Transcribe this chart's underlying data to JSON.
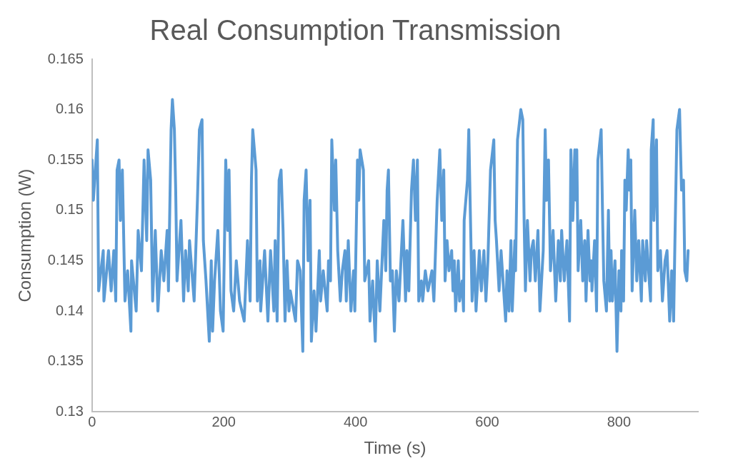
{
  "chart_data": {
    "type": "line",
    "title": "Real Consumption Transmission",
    "xlabel": "Time (s)",
    "ylabel": "Consumption (W)",
    "xlim": [
      0,
      920
    ],
    "xticks": [
      0,
      200,
      400,
      600,
      800
    ],
    "ylim": [
      0.13,
      0.165
    ],
    "yticks": [
      0.13,
      0.135,
      0.14,
      0.145,
      0.15,
      0.155,
      0.16,
      0.165
    ],
    "grid": false,
    "legend": false,
    "marker": "none",
    "line_style": "solid",
    "series": [
      {
        "color": "#5b9bd5",
        "x": [
          0,
          2,
          8,
          10,
          17,
          18,
          25,
          29,
          33,
          36,
          38,
          41,
          43,
          46,
          50,
          54,
          59,
          60,
          67,
          70,
          75,
          79,
          83,
          85,
          89,
          92,
          96,
          100,
          105,
          109,
          114,
          116,
          120,
          122,
          125,
          127,
          129,
          135,
          139,
          142,
          146,
          148,
          155,
          160,
          163,
          167,
          169,
          173,
          178,
          181,
          183,
          186,
          191,
          195,
          199,
          203,
          206,
          208,
          211,
          215,
          219,
          224,
          231,
          236,
          240,
          242,
          244,
          249,
          251,
          255,
          256,
          262,
          267,
          271,
          276,
          278,
          281,
          284,
          287,
          290,
          293,
          296,
          299,
          301,
          309,
          312,
          316,
          320,
          322,
          325,
          328,
          331,
          333,
          337,
          340,
          345,
          347,
          351,
          357,
          359,
          362,
          364,
          368,
          370,
          373,
          377,
          380,
          384,
          386,
          389,
          393,
          397,
          399,
          403,
          405,
          407,
          412,
          414,
          420,
          422,
          426,
          430,
          433,
          437,
          443,
          446,
          448,
          450,
          453,
          456,
          459,
          462,
          466,
          472,
          476,
          478,
          481,
          485,
          488,
          491,
          494,
          496,
          500,
          502,
          506,
          510,
          516,
          519,
          522,
          524,
          528,
          531,
          534,
          536,
          539,
          542,
          546,
          548,
          550,
          552,
          556,
          558,
          562,
          564,
          565,
          570,
          572,
          574,
          577,
          580,
          583,
          588,
          591,
          595,
          598,
          601,
          605,
          610,
          612,
          614,
          618,
          621,
          625,
          628,
          630,
          633,
          636,
          638,
          642,
          643,
          646,
          651,
          654,
          656,
          658,
          661,
          665,
          667,
          670,
          673,
          677,
          680,
          685,
          688,
          690,
          693,
          696,
          700,
          704,
          708,
          711,
          713,
          717,
          721,
          725,
          727,
          730,
          733,
          735,
          736,
          738,
          742,
          745,
          748,
          750,
          753,
          756,
          758,
          759,
          763,
          766,
          768,
          773,
          775,
          777,
          781,
          784,
          786,
          788,
          790,
          794,
          797,
          800,
          803,
          804,
          807,
          809,
          811,
          814,
          816,
          818,
          820,
          824,
          827,
          830,
          834,
          836,
          840,
          842,
          845,
          848,
          849,
          852,
          853,
          857,
          859,
          863,
          866,
          870,
          873,
          877,
          880,
          883,
          885,
          888,
          892,
          895,
          898,
          900,
          903,
          905
        ],
        "values": [
          0.155,
          0.151,
          0.157,
          0.142,
          0.146,
          0.141,
          0.146,
          0.142,
          0.146,
          0.141,
          0.154,
          0.155,
          0.149,
          0.154,
          0.141,
          0.144,
          0.138,
          0.145,
          0.14,
          0.148,
          0.144,
          0.155,
          0.147,
          0.156,
          0.153,
          0.141,
          0.148,
          0.14,
          0.146,
          0.143,
          0.148,
          0.142,
          0.158,
          0.161,
          0.158,
          0.152,
          0.143,
          0.149,
          0.141,
          0.146,
          0.142,
          0.147,
          0.141,
          0.151,
          0.158,
          0.159,
          0.147,
          0.143,
          0.137,
          0.145,
          0.138,
          0.143,
          0.148,
          0.14,
          0.138,
          0.155,
          0.148,
          0.154,
          0.142,
          0.14,
          0.145,
          0.141,
          0.139,
          0.147,
          0.141,
          0.153,
          0.158,
          0.154,
          0.141,
          0.145,
          0.14,
          0.146,
          0.139,
          0.146,
          0.14,
          0.147,
          0.139,
          0.153,
          0.154,
          0.148,
          0.139,
          0.145,
          0.14,
          0.142,
          0.139,
          0.145,
          0.144,
          0.136,
          0.151,
          0.154,
          0.145,
          0.151,
          0.137,
          0.142,
          0.138,
          0.146,
          0.141,
          0.144,
          0.14,
          0.145,
          0.143,
          0.157,
          0.15,
          0.155,
          0.146,
          0.141,
          0.144,
          0.146,
          0.141,
          0.147,
          0.14,
          0.144,
          0.14,
          0.155,
          0.151,
          0.156,
          0.154,
          0.143,
          0.145,
          0.139,
          0.143,
          0.137,
          0.145,
          0.14,
          0.149,
          0.144,
          0.152,
          0.154,
          0.143,
          0.144,
          0.138,
          0.144,
          0.141,
          0.149,
          0.141,
          0.146,
          0.142,
          0.152,
          0.155,
          0.149,
          0.155,
          0.141,
          0.143,
          0.141,
          0.144,
          0.142,
          0.144,
          0.141,
          0.147,
          0.151,
          0.156,
          0.149,
          0.154,
          0.143,
          0.147,
          0.144,
          0.146,
          0.142,
          0.145,
          0.14,
          0.145,
          0.141,
          0.143,
          0.14,
          0.149,
          0.153,
          0.158,
          0.151,
          0.141,
          0.146,
          0.14,
          0.146,
          0.142,
          0.146,
          0.141,
          0.145,
          0.154,
          0.157,
          0.149,
          0.147,
          0.142,
          0.146,
          0.142,
          0.139,
          0.144,
          0.14,
          0.147,
          0.14,
          0.147,
          0.144,
          0.157,
          0.16,
          0.159,
          0.149,
          0.142,
          0.149,
          0.143,
          0.146,
          0.147,
          0.143,
          0.148,
          0.14,
          0.146,
          0.158,
          0.151,
          0.155,
          0.144,
          0.148,
          0.141,
          0.147,
          0.143,
          0.148,
          0.143,
          0.147,
          0.139,
          0.156,
          0.149,
          0.156,
          0.151,
          0.156,
          0.144,
          0.149,
          0.143,
          0.147,
          0.141,
          0.148,
          0.143,
          0.145,
          0.142,
          0.147,
          0.14,
          0.155,
          0.158,
          0.15,
          0.143,
          0.14,
          0.15,
          0.141,
          0.146,
          0.141,
          0.145,
          0.136,
          0.144,
          0.14,
          0.146,
          0.141,
          0.153,
          0.15,
          0.156,
          0.152,
          0.155,
          0.142,
          0.15,
          0.143,
          0.147,
          0.141,
          0.147,
          0.143,
          0.147,
          0.144,
          0.141,
          0.156,
          0.159,
          0.149,
          0.157,
          0.144,
          0.146,
          0.141,
          0.145,
          0.146,
          0.139,
          0.144,
          0.139,
          0.147,
          0.158,
          0.16,
          0.152,
          0.153,
          0.144,
          0.143,
          0.146
        ]
      }
    ]
  }
}
